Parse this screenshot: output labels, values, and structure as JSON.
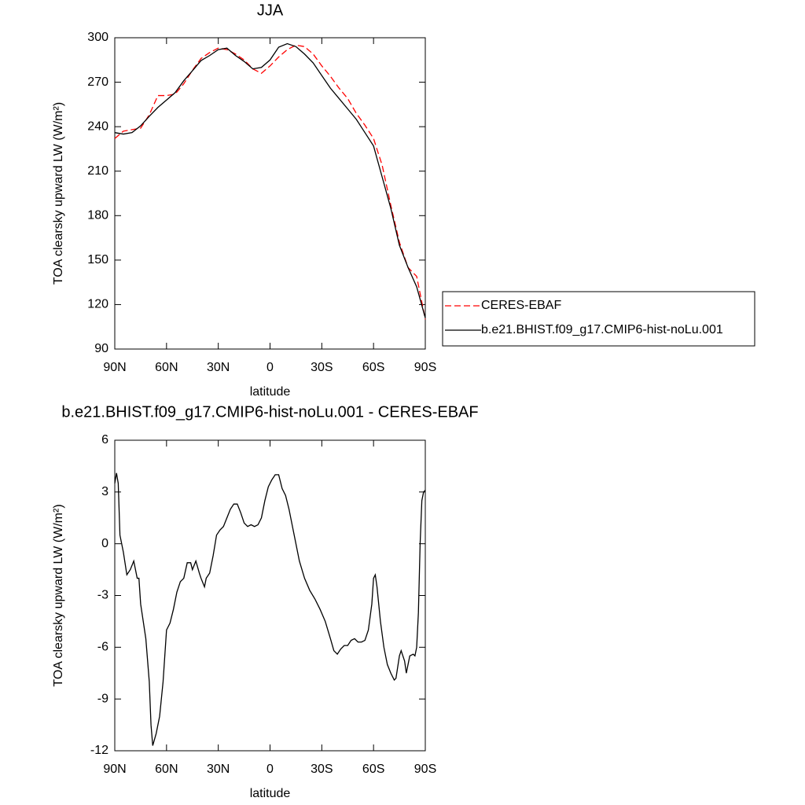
{
  "chart_data": [
    {
      "type": "line",
      "title": "JJA",
      "xlabel": "latitude",
      "ylabel": "TOA clearsky upward LW (W/m²)",
      "x": [
        90,
        85,
        80,
        75,
        70,
        65,
        60,
        55,
        50,
        45,
        40,
        35,
        30,
        25,
        20,
        15,
        10,
        5,
        0,
        -5,
        -10,
        -15,
        -20,
        -25,
        -30,
        -35,
        -40,
        -45,
        -50,
        -55,
        -60,
        -65,
        -70,
        -75,
        -80,
        -85,
        -90
      ],
      "series": [
        {
          "name": "CERES-EBAF",
          "color": "#ff0000",
          "line_style": "dashed",
          "values": [
            232,
            237,
            238,
            239,
            248,
            261,
            261,
            262,
            269,
            278,
            286,
            290,
            293,
            292,
            289,
            285,
            279,
            276,
            281,
            287,
            292,
            295,
            294,
            289,
            281,
            274,
            266,
            259,
            249,
            241,
            232,
            214,
            187,
            162,
            145,
            139,
            110
          ]
        },
        {
          "name": "b.e21.BHIST.f09_g17.CMIP6-hist-noLu.001",
          "color": "#000000",
          "line_style": "solid",
          "values": [
            236,
            235,
            236,
            240.6,
            247,
            253,
            258,
            263,
            271,
            277.7,
            284.6,
            288,
            292,
            293,
            288,
            284,
            279,
            280,
            285,
            293.6,
            296,
            294,
            289,
            283,
            274.5,
            266,
            259,
            252,
            245,
            236,
            227,
            206,
            185,
            160,
            145,
            132,
            111
          ]
        }
      ],
      "xlim": [
        90,
        -90
      ],
      "xticks": [
        {
          "value": 90,
          "label": "90N"
        },
        {
          "value": 60,
          "label": "60N"
        },
        {
          "value": 30,
          "label": "30N"
        },
        0,
        {
          "value": -30,
          "label": "30S"
        },
        {
          "value": -60,
          "label": "60S"
        },
        {
          "value": -90,
          "label": "90S"
        }
      ],
      "ylim": [
        90,
        300
      ],
      "yticks": [
        90,
        120,
        150,
        180,
        210,
        240,
        270,
        300
      ],
      "legend": "right"
    },
    {
      "type": "line",
      "title": "b.e21.BHIST.f09_g17.CMIP6-hist-noLu.001 - CERES-EBAF",
      "xlabel": "latitude",
      "ylabel": "TOA clearsky upward LW (W/m²)",
      "x": [
        90,
        89,
        88,
        87,
        85,
        83,
        81,
        79,
        77,
        76,
        75,
        72,
        70,
        69,
        68,
        66,
        64,
        62,
        60,
        58,
        56,
        54,
        52,
        50,
        48,
        46,
        45,
        43,
        41,
        40,
        38,
        37,
        35,
        33,
        31,
        29,
        27,
        25,
        23,
        21,
        19,
        17,
        15,
        13,
        11,
        9,
        7,
        5,
        3,
        1,
        -1,
        -3,
        -5,
        -7,
        -9,
        -11,
        -13,
        -15,
        -17,
        -20,
        -23,
        -26,
        -29,
        -32,
        -35,
        -37,
        -39,
        -41,
        -43,
        -45,
        -47,
        -49,
        -51,
        -53,
        -55,
        -57,
        -59,
        -60,
        -61,
        -62,
        -64,
        -66,
        -68,
        -70,
        -72,
        -73,
        -75,
        -76,
        -78,
        -79,
        -81,
        -83,
        -84,
        -85,
        -86,
        -87,
        -88,
        -89,
        -90
      ],
      "color": "#000000",
      "values": [
        3.5,
        4.1,
        3.5,
        0.5,
        -0.5,
        -1.8,
        -1.5,
        -1.0,
        -2.0,
        -2.0,
        -3.5,
        -5.5,
        -8,
        -10.5,
        -11.7,
        -11,
        -10,
        -8,
        -5,
        -4.6,
        -3.8,
        -2.8,
        -2.2,
        -2.0,
        -1.1,
        -1.1,
        -1.5,
        -1.0,
        -1.7,
        -2.0,
        -2.5,
        -2.0,
        -1.7,
        -0.7,
        0.5,
        0.8,
        1.0,
        1.5,
        2.0,
        2.3,
        2.3,
        1.8,
        1.2,
        1.0,
        1.1,
        1.0,
        1.1,
        1.5,
        2.5,
        3.3,
        3.7,
        4.0,
        4.0,
        3.2,
        2.8,
        2.0,
        1.0,
        0.0,
        -1.0,
        -2.0,
        -2.7,
        -3.2,
        -3.8,
        -4.5,
        -5.5,
        -6.2,
        -6.4,
        -6.1,
        -5.9,
        -5.9,
        -5.6,
        -5.5,
        -5.7,
        -5.7,
        -5.6,
        -5.0,
        -3.5,
        -2.0,
        -1.8,
        -2.5,
        -4.5,
        -6.0,
        -7.0,
        -7.5,
        -7.9,
        -7.8,
        -6.5,
        -6.2,
        -6.8,
        -7.5,
        -6.5,
        -6.4,
        -6.5,
        -6.0,
        -4.0,
        0.0,
        2.5,
        3.0,
        3.1
      ],
      "xlim": [
        90,
        -90
      ],
      "xticks": [
        {
          "value": 90,
          "label": "90N"
        },
        {
          "value": 60,
          "label": "60N"
        },
        {
          "value": 30,
          "label": "30N"
        },
        0,
        {
          "value": -30,
          "label": "30S"
        },
        {
          "value": -60,
          "label": "60S"
        },
        {
          "value": -90,
          "label": "90S"
        }
      ],
      "ylim": [
        -12,
        6
      ],
      "yticks": [
        -12,
        -9,
        -6,
        -3,
        0,
        3,
        6
      ]
    }
  ]
}
